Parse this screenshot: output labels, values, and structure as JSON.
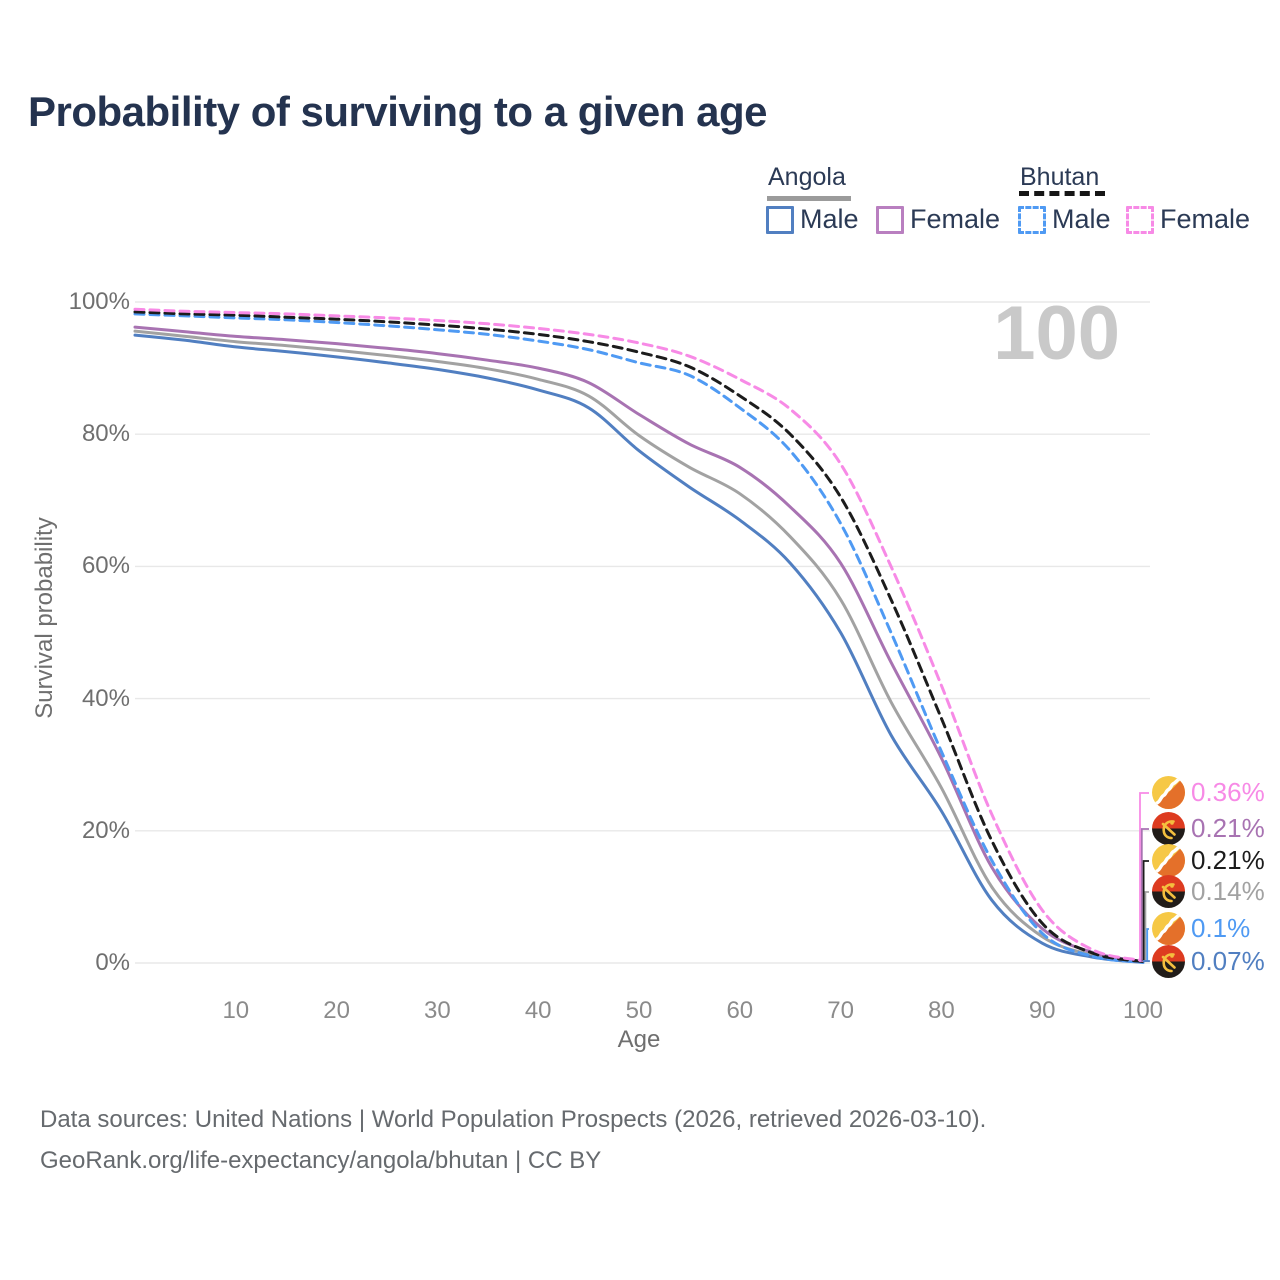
{
  "title": "Probability of surviving to a given age",
  "watermark": "100",
  "legend": {
    "groups": [
      {
        "country": "Angola",
        "line_style": "solid",
        "underline_color": "#9b9b9b",
        "items": [
          {
            "label": "Male",
            "color": "#517fc1"
          },
          {
            "label": "Female",
            "color": "#b97fc0"
          }
        ]
      },
      {
        "country": "Bhutan",
        "line_style": "dashed",
        "underline_color": "#161616",
        "items": [
          {
            "label": "Male",
            "color": "#4f9af3"
          },
          {
            "label": "Female",
            "color": "#f78ae6"
          }
        ]
      }
    ]
  },
  "y_axis": {
    "title": "Survival probability",
    "ticks": [
      "100%",
      "80%",
      "60%",
      "40%",
      "20%",
      "0%"
    ]
  },
  "x_axis": {
    "title": "Age",
    "ticks": [
      "10",
      "20",
      "30",
      "40",
      "50",
      "60",
      "70",
      "80",
      "90",
      "100"
    ]
  },
  "end_labels": [
    {
      "value": "0.36%",
      "flag": "bhutan",
      "color": "#f78ae6"
    },
    {
      "value": "0.21%",
      "flag": "angola",
      "color": "#a873b2"
    },
    {
      "value": "0.21%",
      "flag": "bhutan",
      "color": "#1c1c1c"
    },
    {
      "value": "0.14%",
      "flag": "angola",
      "color": "#a2a2a2"
    },
    {
      "value": "0.1%",
      "flag": "bhutan",
      "color": "#4f9af3"
    },
    {
      "value": "0.07%",
      "flag": "angola",
      "color": "#517fc1"
    }
  ],
  "caption": {
    "line1": "Data sources: United Nations | World Population Prospects (2026, retrieved 2026-03-10).",
    "line2": "GeoRank.org/life-expectancy/angola/bhutan | CC BY"
  },
  "chart_data": {
    "type": "line",
    "title": "Probability of surviving to a given age",
    "xlabel": "Age",
    "ylabel": "Survival probability",
    "xlim": [
      0,
      100
    ],
    "ylim": [
      0,
      100
    ],
    "y_unit": "%",
    "grid": "horizontal",
    "legend_position": "top-right",
    "x": [
      0,
      5,
      10,
      15,
      20,
      25,
      30,
      35,
      40,
      45,
      50,
      55,
      60,
      65,
      70,
      75,
      80,
      85,
      90,
      95,
      100
    ],
    "series": [
      {
        "name": "Angola Both sexes",
        "color": "#a2a2a2",
        "dashed": false,
        "values": [
          95.6,
          94.8,
          94.0,
          93.4,
          92.7,
          91.9,
          91.0,
          89.9,
          88.3,
          85.8,
          79.8,
          75.0,
          71.0,
          64.5,
          55.0,
          39.5,
          26.5,
          11.5,
          4.0,
          1.2,
          0.14
        ]
      },
      {
        "name": "Angola Male",
        "color": "#517fc1",
        "dashed": false,
        "values": [
          95.0,
          94.2,
          93.2,
          92.5,
          91.7,
          90.8,
          89.8,
          88.5,
          86.7,
          84.0,
          77.5,
          72.0,
          67.0,
          60.5,
          50.0,
          34.5,
          23.0,
          9.5,
          3.0,
          0.9,
          0.07
        ]
      },
      {
        "name": "Angola Female",
        "color": "#a873b2",
        "dashed": false,
        "values": [
          96.2,
          95.5,
          94.8,
          94.3,
          93.7,
          93.0,
          92.2,
          91.2,
          90.0,
          87.8,
          83.0,
          78.5,
          75.0,
          69.0,
          60.5,
          45.5,
          31.0,
          14.5,
          5.2,
          1.6,
          0.21
        ]
      },
      {
        "name": "Bhutan Male",
        "color": "#4f9af3",
        "dashed": true,
        "values": [
          98.2,
          97.9,
          97.6,
          97.3,
          96.9,
          96.4,
          95.8,
          95.1,
          94.1,
          92.8,
          90.8,
          88.9,
          84.0,
          77.5,
          66.5,
          50.0,
          32.0,
          15.5,
          4.5,
          1.0,
          0.1
        ]
      },
      {
        "name": "Bhutan Both sexes",
        "color": "#1c1c1c",
        "dashed": true,
        "values": [
          98.5,
          98.2,
          98.0,
          97.7,
          97.4,
          97.0,
          96.5,
          95.9,
          95.1,
          94.0,
          92.4,
          90.2,
          85.8,
          80.0,
          70.5,
          55.0,
          37.0,
          18.5,
          6.0,
          1.5,
          0.21
        ]
      },
      {
        "name": "Bhutan Female",
        "color": "#f78ae6",
        "dashed": true,
        "values": [
          98.9,
          98.6,
          98.4,
          98.2,
          97.9,
          97.6,
          97.2,
          96.7,
          96.0,
          95.1,
          93.8,
          91.8,
          88.3,
          83.8,
          75.5,
          60.0,
          42.0,
          22.5,
          8.0,
          2.0,
          0.36
        ]
      }
    ],
    "end_annotations": [
      {
        "series": "Bhutan Female",
        "value_at_100": "0.36%"
      },
      {
        "series": "Angola Female",
        "value_at_100": "0.21%"
      },
      {
        "series": "Bhutan Both sexes",
        "value_at_100": "0.21%"
      },
      {
        "series": "Angola Both sexes",
        "value_at_100": "0.14%"
      },
      {
        "series": "Bhutan Male",
        "value_at_100": "0.1%"
      },
      {
        "series": "Angola Male",
        "value_at_100": "0.07%"
      }
    ],
    "age_counter_watermark": "100"
  }
}
